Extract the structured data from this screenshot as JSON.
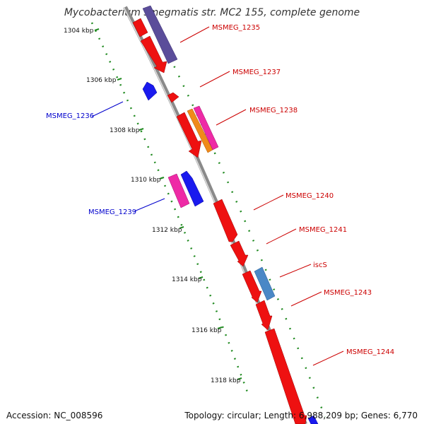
{
  "title": "Mycobacterium smegmatis str. MC2 155, complete genome",
  "accession": "Accession: NC_008596",
  "topology": "Topology: circular; Length: 6,988,209 bp; Genes: 6,770",
  "colors": {
    "forward_label": "#cc0000",
    "reverse_label": "#0000cc",
    "backbone": "#888888",
    "ticks": "#228B22"
  },
  "scale_labels": [
    "1304 kbp",
    "1306 kbp",
    "1308 kbp",
    "1310 kbp",
    "1312 kbp",
    "1314 kbp",
    "1316 kbp",
    "1318 kbp"
  ],
  "genes": [
    {
      "name": "MSMEG_1235",
      "strand": "+"
    },
    {
      "name": "MSMEG_1236",
      "strand": "-"
    },
    {
      "name": "MSMEG_1237",
      "strand": "+"
    },
    {
      "name": "MSMEG_1238",
      "strand": "+"
    },
    {
      "name": "MSMEG_1239",
      "strand": "-"
    },
    {
      "name": "MSMEG_1240",
      "strand": "+"
    },
    {
      "name": "MSMEG_1241",
      "strand": "+"
    },
    {
      "name": "iscS",
      "strand": "+"
    },
    {
      "name": "MSMEG_1243",
      "strand": "+"
    },
    {
      "name": "MSMEG_1244",
      "strand": "+"
    }
  ]
}
